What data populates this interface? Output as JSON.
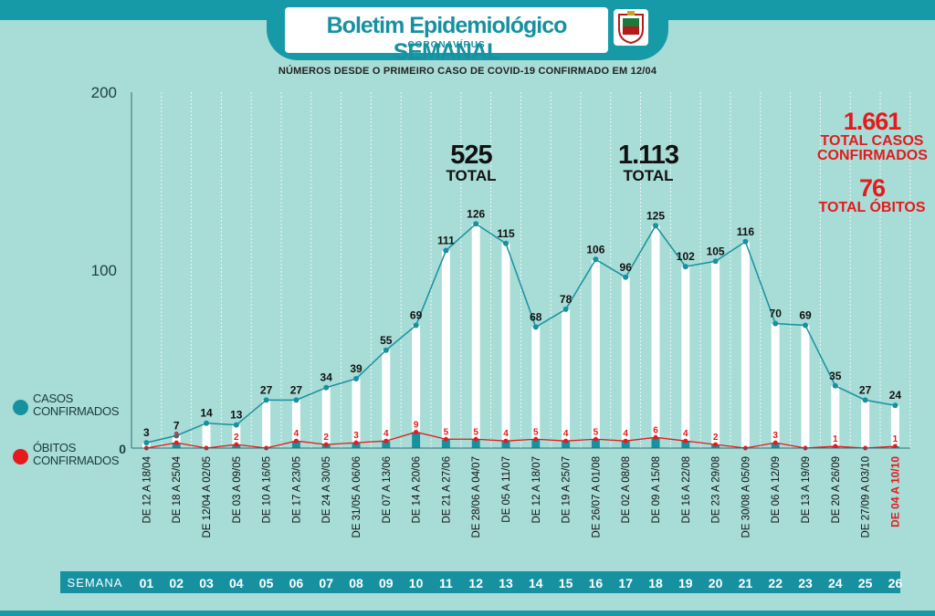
{
  "header": {
    "title": "Boletim Epidemiológico SEMANAL",
    "subtitle": "CORONAVÍRUS",
    "note": "NÚMEROS DESDE O PRIMEIRO CASO DE COVID-19 CONFIRMADO EM 12/04",
    "crest_icon": "municipal-crest-icon"
  },
  "legend": {
    "cases": "CASOS CONFIRMADOS",
    "deaths": "ÓBITOS CONFIRMADOS"
  },
  "totals": {
    "cases_value": "1.661",
    "cases_label": "TOTAL CASOS CONFIRMADOS",
    "deaths_value": "76",
    "deaths_label": "TOTAL ÓBITOS"
  },
  "peaks": [
    {
      "value": "525",
      "label": "TOTAL"
    },
    {
      "value": "1.113",
      "label": "TOTAL"
    }
  ],
  "colors": {
    "background": "#a8dcd6",
    "accent": "#179aa8",
    "cases": "#1791a0",
    "deaths": "#e41a1c",
    "bar": "#ffffff"
  },
  "chart_data": {
    "type": "line",
    "ylim": [
      0,
      200
    ],
    "yticks": [
      0,
      100,
      200
    ],
    "x_axis_label": "SEMANA",
    "weeks": [
      "01",
      "02",
      "03",
      "04",
      "05",
      "06",
      "07",
      "08",
      "09",
      "10",
      "11",
      "12",
      "13",
      "14",
      "15",
      "16",
      "17",
      "18",
      "19",
      "20",
      "21",
      "22",
      "23",
      "24",
      "25",
      "26"
    ],
    "categories": [
      "DE 12 A 18/04",
      "DE 18 A 25/04",
      "DE 12/04 A 02/05",
      "DE 03 A 09/05",
      "DE 10 A 16/05",
      "DE 17 A 23/05",
      "DE 24 A 30/05",
      "DE 31/05 A 06/06",
      "DE 07 A 13/06",
      "DE 14 A 20/06",
      "DE 21 A 27/06",
      "DE 28/06 A 04/07",
      "DE 05 A 11/07",
      "DE 12 A 18/07",
      "DE 19 A 25/07",
      "DE 26/07 A 01/08",
      "DE 02 A 08/08",
      "DE 09 A 15/08",
      "DE 16 A 22/08",
      "DE 23 A 29/08",
      "DE 30/08 A 05/09",
      "DE 06 A 12/09",
      "DE 13 A 19/09",
      "DE 20 A 26/09",
      "DE 27/09 A 03/10",
      "DE 04 A 10/10"
    ],
    "series": [
      {
        "name": "CASOS CONFIRMADOS",
        "values": [
          3,
          7,
          14,
          13,
          27,
          27,
          34,
          39,
          55,
          69,
          111,
          126,
          115,
          68,
          78,
          106,
          96,
          125,
          102,
          105,
          116,
          70,
          69,
          35,
          27,
          24
        ]
      },
      {
        "name": "ÓBITOS CONFIRMADOS",
        "values": [
          0,
          3,
          0,
          2,
          0,
          4,
          2,
          3,
          4,
          9,
          5,
          5,
          4,
          5,
          4,
          5,
          4,
          6,
          4,
          2,
          0,
          3,
          0,
          1,
          0,
          1
        ]
      }
    ],
    "death_labels": [
      "",
      "3",
      "",
      "2",
      "",
      "4",
      "2",
      "3",
      "4",
      "9",
      "5",
      "5",
      "4",
      "5",
      "4",
      "5",
      "4",
      "6",
      "4",
      "2",
      "",
      "3",
      "",
      "1",
      "",
      "1"
    ]
  }
}
